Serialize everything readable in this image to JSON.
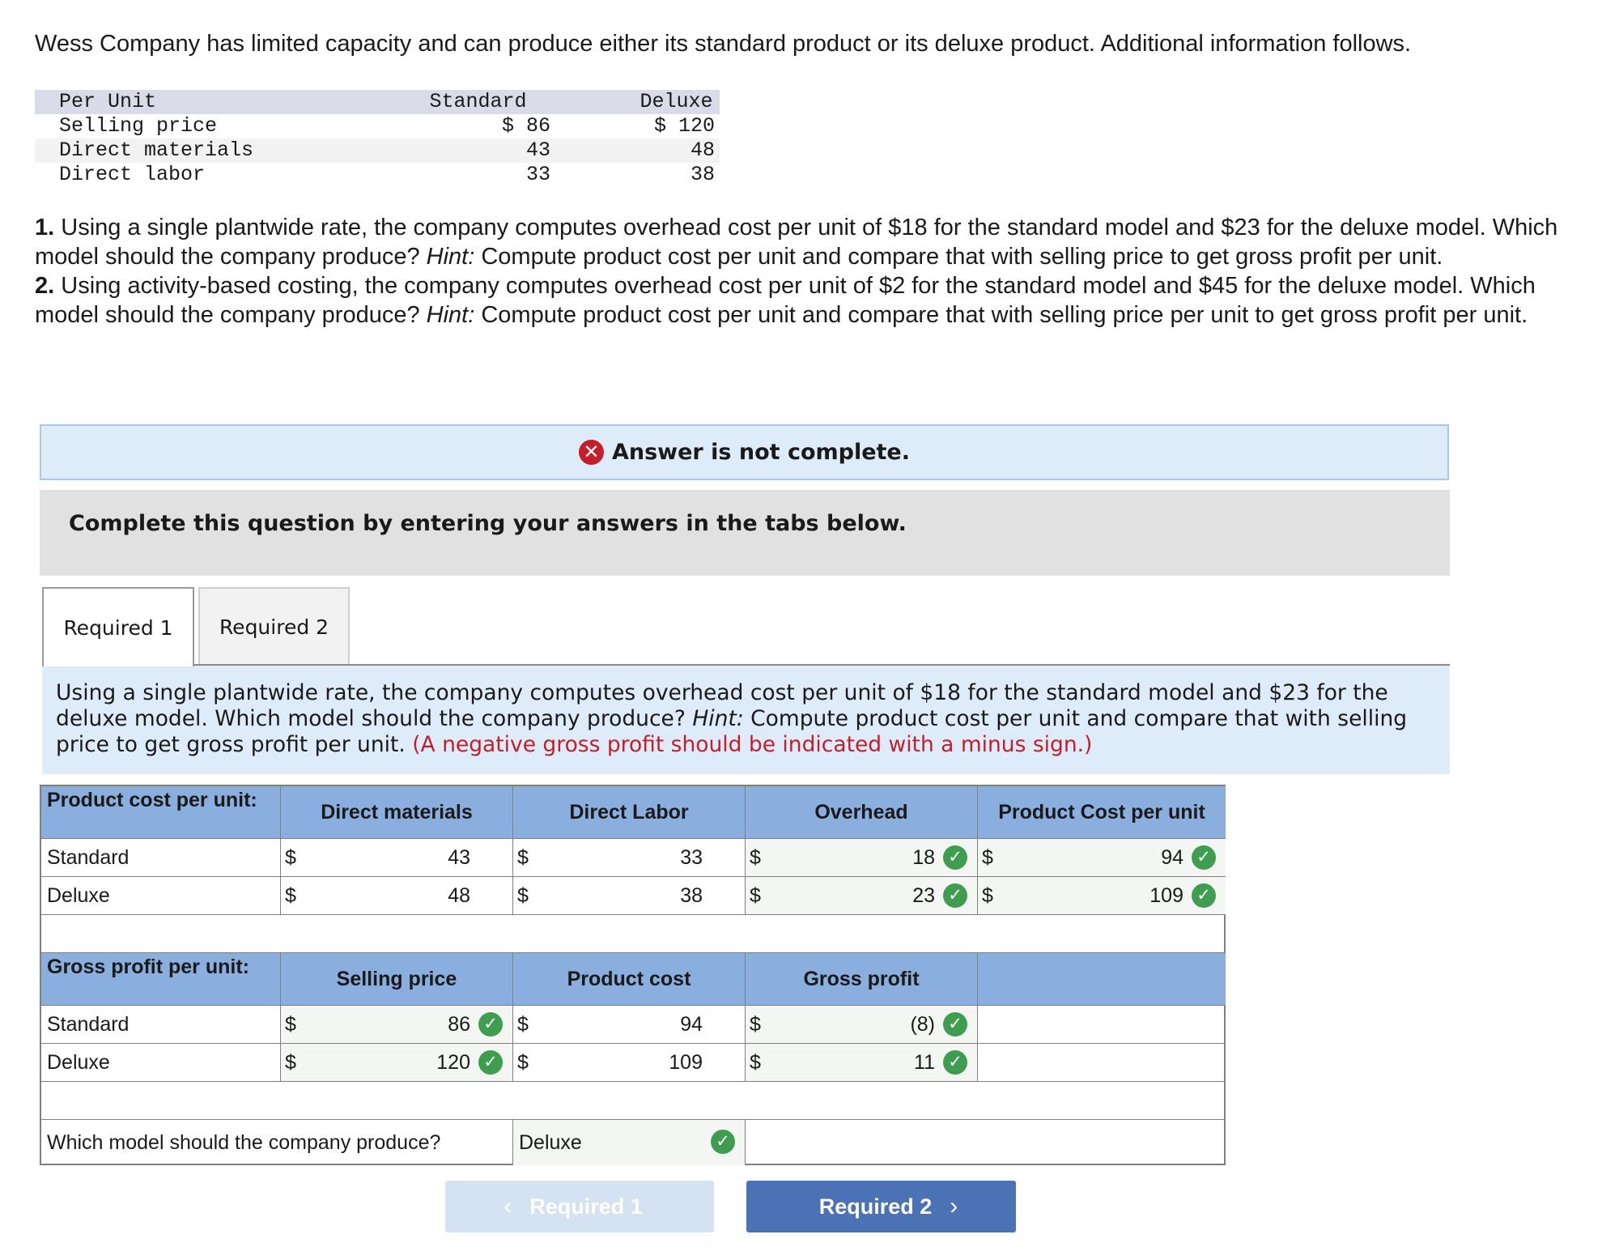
{
  "intro": "Wess Company has limited capacity and can produce either its standard product or its deluxe product. Additional information follows.",
  "info_table": {
    "headers": [
      "Per Unit",
      "Standard",
      "Deluxe"
    ],
    "rows": [
      [
        "Selling price",
        "$ 86",
        "$ 120"
      ],
      [
        "Direct materials",
        "43",
        "48"
      ],
      [
        "Direct labor",
        "33",
        "38"
      ]
    ]
  },
  "questions": {
    "q1_num": "1.",
    "q1_a": " Using a single plantwide rate, the company computes overhead cost per unit of $18 for the standard model and $23 for the deluxe model. Which model should the company produce? ",
    "q1_hint": "Hint:",
    "q1_b": " Compute product cost per unit and compare that with selling price to get gross profit per unit.",
    "q2_num": "2.",
    "q2_a": " Using activity-based costing, the company computes overhead cost per unit of $2 for the standard model and $45 for the deluxe model. Which model should the company produce? ",
    "q2_hint": "Hint:",
    "q2_b": " Compute product cost per unit and compare that with selling price per unit to get gross profit per unit."
  },
  "banner": {
    "icon": "x-circle-icon",
    "text": "Answer is not complete."
  },
  "instruction": "Complete this question by entering your answers in the tabs below.",
  "tabs": [
    {
      "label": "Required 1",
      "active": true
    },
    {
      "label": "Required 2",
      "active": false
    }
  ],
  "prompt": {
    "text": "Using a single plantwide rate, the company computes overhead cost per unit of $18 for the standard model and $23 for the deluxe model. Which model should the company produce? ",
    "hint": "Hint:",
    "text2": " Compute product cost per unit and compare that with selling price to get gross profit per unit. ",
    "note": "(A negative gross profit should be indicated with a minus sign.)"
  },
  "cost_table": {
    "title": "Product cost per unit:",
    "headers": [
      "Direct materials",
      "Direct Labor",
      "Overhead",
      "Product Cost per unit"
    ],
    "rows": [
      {
        "label": "Standard",
        "dm": "43",
        "dl": "33",
        "oh": "18",
        "pc": "94"
      },
      {
        "label": "Deluxe",
        "dm": "48",
        "dl": "38",
        "oh": "23",
        "pc": "109"
      }
    ]
  },
  "profit_table": {
    "title": "Gross profit per unit:",
    "headers": [
      "Selling price",
      "Product cost",
      "Gross profit"
    ],
    "rows": [
      {
        "label": "Standard",
        "sp": "86",
        "pc": "94",
        "gp": "(8)"
      },
      {
        "label": "Deluxe",
        "sp": "120",
        "pc": "109",
        "gp": "11"
      }
    ]
  },
  "currency": "$",
  "decision": {
    "question": "Which model should the company produce?",
    "answer": "Deluxe"
  },
  "nav": {
    "prev": "Required 1",
    "next": "Required 2"
  },
  "colors": {
    "header_blue": "#8aaede",
    "check_green": "#3f9d4f",
    "error_red": "#c41e2a",
    "button_blue": "#4a72b5"
  }
}
